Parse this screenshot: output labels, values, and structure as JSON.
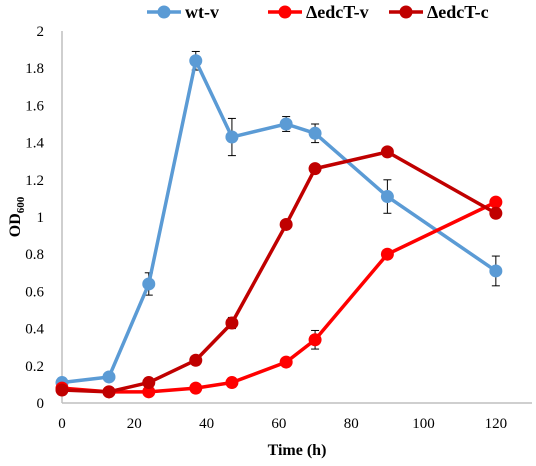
{
  "chart_data": {
    "type": "line",
    "title": "",
    "xlabel": "Time (h)",
    "ylabel": {
      "main": "OD",
      "sub": "600"
    },
    "xlim": [
      0,
      130
    ],
    "ylim": [
      0,
      2
    ],
    "xticks": [
      0,
      20,
      40,
      60,
      80,
      100,
      120
    ],
    "yticks": [
      0,
      0.2,
      0.4,
      0.6,
      0.8,
      1,
      1.2,
      1.4,
      1.6,
      1.8,
      2
    ],
    "ytick_labels": [
      "0",
      "0.2",
      "0.4",
      "0.6",
      "0.8",
      "1",
      "1.2",
      "1.4",
      "1.6",
      "1.8",
      "2"
    ],
    "grid": false,
    "legend_position": "top",
    "series": [
      {
        "name": "wt-v",
        "color": "#5b9bd5",
        "x": [
          0,
          13,
          24,
          37,
          47,
          62,
          70,
          90,
          120
        ],
        "y": [
          0.11,
          0.14,
          0.64,
          1.84,
          1.43,
          1.5,
          1.45,
          1.11,
          0.71
        ],
        "err": [
          0.01,
          0.01,
          0.06,
          0.05,
          0.1,
          0.04,
          0.05,
          0.09,
          0.08
        ]
      },
      {
        "name": "ΔedcT-v",
        "color": "#ff0000",
        "x": [
          0,
          13,
          24,
          37,
          47,
          62,
          70,
          90,
          120
        ],
        "y": [
          0.08,
          0.06,
          0.06,
          0.08,
          0.11,
          0.22,
          0.34,
          0.8,
          1.08
        ],
        "err": [
          0.01,
          0.01,
          0.01,
          0.01,
          0.01,
          0.01,
          0.05,
          0.01,
          0.02
        ]
      },
      {
        "name": "ΔedcT-c",
        "color": "#c00000",
        "x": [
          0,
          13,
          24,
          37,
          47,
          62,
          70,
          90,
          120
        ],
        "y": [
          0.07,
          0.06,
          0.11,
          0.23,
          0.43,
          0.96,
          1.26,
          1.35,
          1.02
        ],
        "err": [
          0.01,
          0.01,
          0.01,
          0.02,
          0.03,
          0.01,
          0.01,
          0.01,
          0.01
        ]
      }
    ]
  }
}
